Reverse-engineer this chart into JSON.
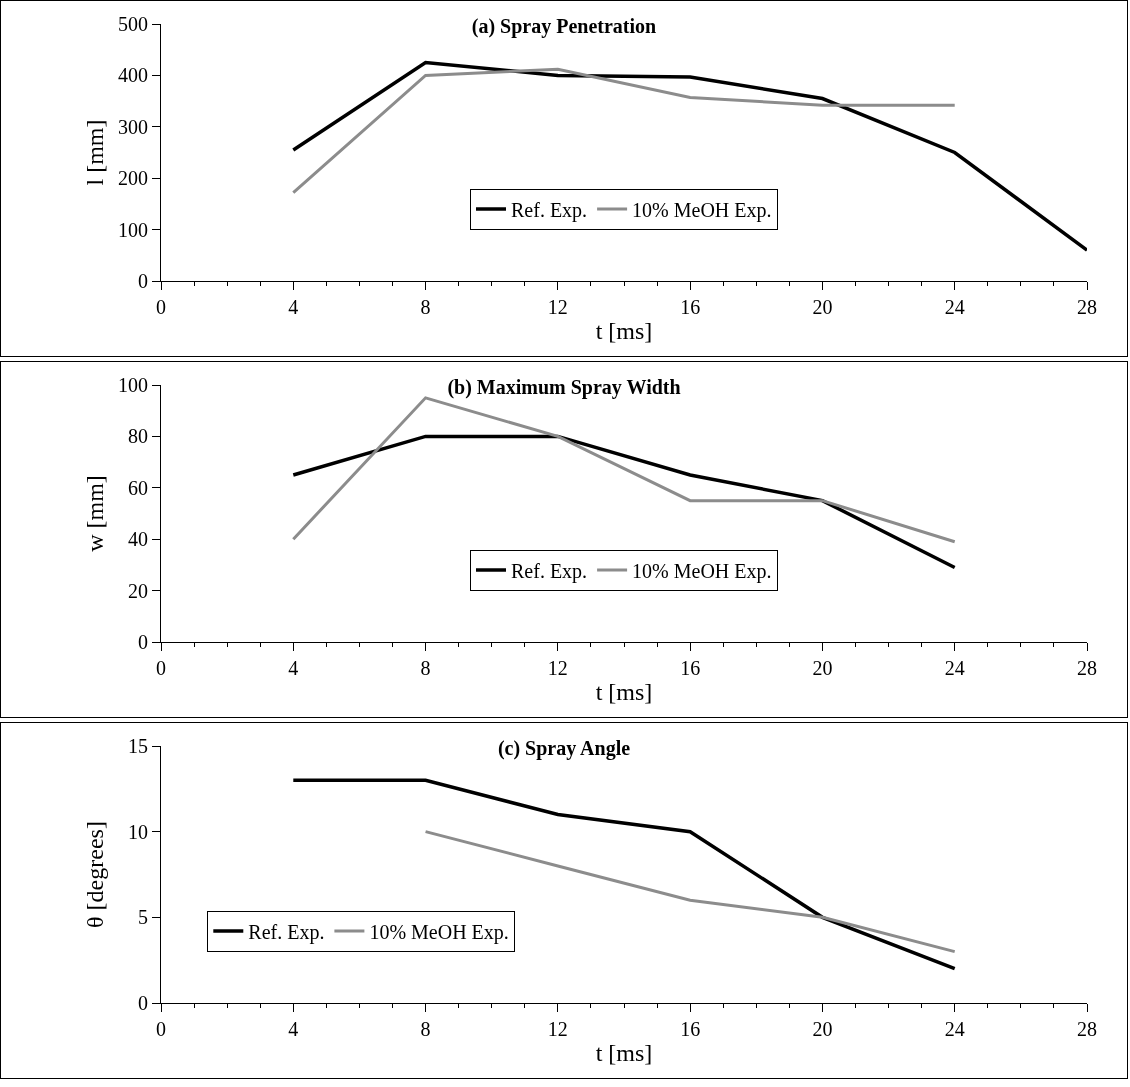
{
  "chart_data": [
    {
      "type": "line",
      "title": "(a) Spray Penetration",
      "xlabel": "t [ms]",
      "ylabel": "l [mm]",
      "x": [
        4,
        8,
        12,
        16,
        20,
        24,
        28
      ],
      "xlim": [
        0,
        28
      ],
      "xticks": [
        0,
        4,
        8,
        12,
        16,
        20,
        24,
        28
      ],
      "ylim": [
        0,
        500
      ],
      "yticks": [
        0,
        100,
        200,
        300,
        400,
        500
      ],
      "grid": false,
      "legend": "bottom",
      "line_style": "solid",
      "series": [
        {
          "name": "Ref. Exp.",
          "color": "#000000",
          "values": [
            255,
            425,
            400,
            397,
            355,
            250,
            60
          ]
        },
        {
          "name": "10% MeOH Exp.",
          "color": "#8c8c8c",
          "values": [
            172,
            400,
            412,
            357,
            342,
            342,
            null
          ]
        }
      ]
    },
    {
      "type": "line",
      "title": "(b) Maximum Spray Width",
      "xlabel": "t [ms]",
      "ylabel": "w [mm]",
      "x": [
        4,
        8,
        12,
        16,
        20,
        24
      ],
      "xlim": [
        0,
        28
      ],
      "xticks": [
        0,
        4,
        8,
        12,
        16,
        20,
        24,
        28
      ],
      "ylim": [
        0,
        100
      ],
      "yticks": [
        0,
        20,
        40,
        60,
        80,
        100
      ],
      "grid": false,
      "legend": "bottom",
      "line_style": "solid",
      "series": [
        {
          "name": "Ref. Exp.",
          "color": "#000000",
          "values": [
            65,
            80,
            80,
            65,
            55,
            29
          ]
        },
        {
          "name": "10% MeOH Exp.",
          "color": "#8c8c8c",
          "values": [
            40,
            95,
            80,
            55,
            55,
            39
          ]
        }
      ]
    },
    {
      "type": "line",
      "title": "(c) Spray Angle",
      "xlabel": "t [ms]",
      "ylabel": "θ [degrees]",
      "x": [
        4,
        8,
        12,
        16,
        20,
        24
      ],
      "xlim": [
        0,
        28
      ],
      "xticks": [
        0,
        4,
        8,
        12,
        16,
        20,
        24,
        28
      ],
      "ylim": [
        0,
        15
      ],
      "yticks": [
        0,
        5,
        10,
        15
      ],
      "grid": false,
      "legend": "bottom left",
      "line_style": "solid",
      "series": [
        {
          "name": "Ref. Exp.",
          "color": "#000000",
          "values": [
            13,
            13,
            11,
            10,
            5,
            2
          ]
        },
        {
          "name": "10% MeOH Exp.",
          "color": "#8c8c8c",
          "values": [
            null,
            10,
            8,
            6,
            5,
            3
          ]
        }
      ]
    }
  ]
}
